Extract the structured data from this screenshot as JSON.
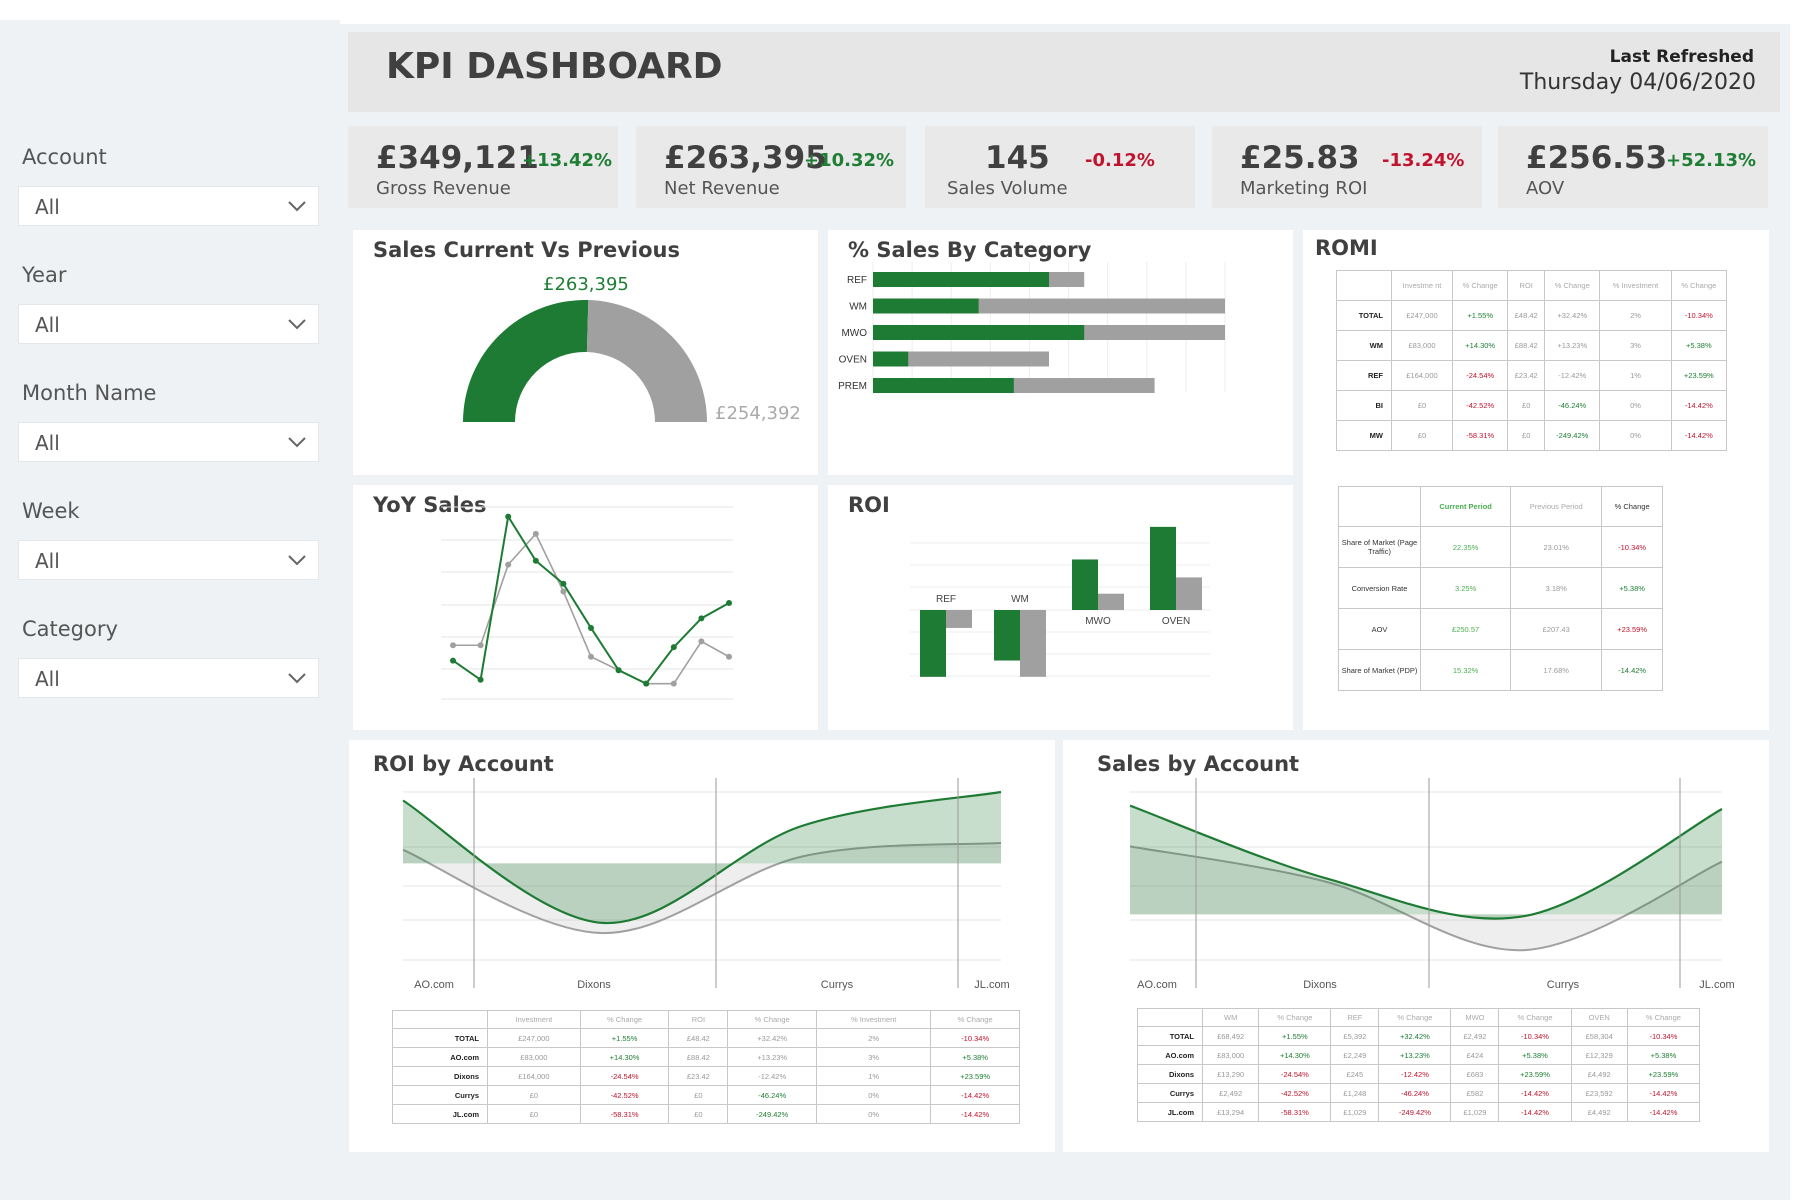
{
  "header": {
    "title": "KPI DASHBOARD",
    "refresh_label": "Last Refreshed",
    "refresh_date": "Thursday 04/06/2020"
  },
  "filters": [
    {
      "label": "Account",
      "value": "All"
    },
    {
      "label": "Year",
      "value": "All"
    },
    {
      "label": "Month Name",
      "value": "All"
    },
    {
      "label": "Week",
      "value": "All"
    },
    {
      "label": "Category",
      "value": "All"
    }
  ],
  "kpis": [
    {
      "value": "£349,121",
      "change": "+13.42%",
      "label": "Gross Revenue",
      "trend": "positive"
    },
    {
      "value": "£263,395",
      "change": "+10.32%",
      "label": "Net Revenue",
      "trend": "positive"
    },
    {
      "value": "145",
      "change": "-0.12%",
      "label": "Sales Volume",
      "trend": "negative"
    },
    {
      "value": "£25.83",
      "change": "-13.24%",
      "label": "Marketing ROI",
      "trend": "negative"
    },
    {
      "value": "£256.53",
      "change": "+52.13%",
      "label": "AOV",
      "trend": "positive"
    }
  ],
  "colors": {
    "green": "#1e7b34",
    "grey": "#a0a0a0",
    "positive": "#1e7e34",
    "negative": "#c0142e"
  },
  "sales_cv": {
    "title": "Sales Current Vs Previous",
    "current_label": "£263,395",
    "previous_label": "£254,392"
  },
  "pct_sales_by_category": {
    "title": "% Sales By Category"
  },
  "yoy_sales": {
    "title": "YoY Sales"
  },
  "roi": {
    "title": "ROI"
  },
  "romi": {
    "title": "ROMI",
    "table1": {
      "headers": [
        "",
        "Investme nt",
        "% Change",
        "ROI",
        "% Change",
        "% Investment",
        "% Change"
      ],
      "rows": [
        [
          "TOTAL",
          "£247,000",
          "+1.55%",
          "£48.42",
          "+32.42%",
          "2%",
          "-10.34%"
        ],
        [
          "WM",
          "£83,000",
          "+14.30%",
          "£88.42",
          "+13.23%",
          "3%",
          "+5.38%"
        ],
        [
          "REF",
          "£164,000",
          "-24.54%",
          "£23.42",
          "-12.42%",
          "1%",
          "+23.59%"
        ],
        [
          "BI",
          "£0",
          "-42.52%",
          "£0",
          "-46.24%",
          "0%",
          "-14.42%"
        ],
        [
          "MW",
          "£0",
          "-58.31%",
          "£0",
          "-249.42%",
          "0%",
          "-14.42%"
        ]
      ]
    },
    "table2": {
      "headers": [
        "",
        "Current Period",
        "Previous Period",
        "% Change"
      ],
      "rows": [
        [
          "Share of Market (Page Traffic)",
          "22.35%",
          "23.01%",
          "-10.34%"
        ],
        [
          "Conversion Rate",
          "3.25%",
          "3.18%",
          "+5.38%"
        ],
        [
          "AOV",
          "£250.57",
          "£207.43",
          "+23.59%"
        ],
        [
          "Share of Market (PDP)",
          "15.32%",
          "17.68%",
          "-14.42%"
        ]
      ]
    }
  },
  "roi_by_account": {
    "title": "ROI by Account",
    "axis": [
      "AO.com",
      "Dixons",
      "Currys",
      "JL.com"
    ],
    "table": {
      "headers": [
        "",
        "Investment",
        "% Change",
        "ROI",
        "% Change",
        "% Investment",
        "% Change"
      ],
      "rows": [
        [
          "TOTAL",
          "£247,000",
          "+1.55%",
          "£48.42",
          "+32.42%",
          "2%",
          "-10.34%"
        ],
        [
          "AO.com",
          "£83,000",
          "+14.30%",
          "£88.42",
          "+13.23%",
          "3%",
          "+5.38%"
        ],
        [
          "Dixons",
          "£164,000",
          "-24.54%",
          "£23.42",
          "-12.42%",
          "1%",
          "+23.59%"
        ],
        [
          "Currys",
          "£0",
          "-42.52%",
          "£0",
          "-46.24%",
          "0%",
          "-14.42%"
        ],
        [
          "JL.com",
          "£0",
          "-58.31%",
          "£0",
          "-249.42%",
          "0%",
          "-14.42%"
        ]
      ]
    }
  },
  "sales_by_account": {
    "title": "Sales by Account",
    "axis": [
      "AO.com",
      "Dixons",
      "Currys",
      "JL.com"
    ],
    "table": {
      "headers": [
        "",
        "WM",
        "% Change",
        "REF",
        "% Change",
        "MWO",
        "% Change",
        "OVEN",
        "% Change"
      ],
      "rows": [
        [
          "TOTAL",
          "£68,492",
          "+1.55%",
          "£5,392",
          "+32.42%",
          "£2,492",
          "-10.34%",
          "£58,304",
          "-10.34%"
        ],
        [
          "AO.com",
          "£83,000",
          "+14.30%",
          "£2,249",
          "+13.23%",
          "£424",
          "+5.38%",
          "£12,329",
          "+5.38%"
        ],
        [
          "Dixons",
          "£13,290",
          "-24.54%",
          "£245",
          "-12.42%",
          "£683",
          "+23.59%",
          "£4,492",
          "+23.59%"
        ],
        [
          "Currys",
          "£2,492",
          "-42.52%",
          "£1,248",
          "-46.24%",
          "£582",
          "-14.42%",
          "£23,592",
          "-14.42%"
        ],
        [
          "JL.com",
          "£13,294",
          "-58.31%",
          "£1,029",
          "-249.42%",
          "£1,029",
          "-14.42%",
          "£4,492",
          "-14.42%"
        ]
      ]
    }
  },
  "chart_data": [
    {
      "type": "pie",
      "title": "Sales Current Vs Previous",
      "slices": [
        {
          "label": "Current",
          "value": 263395,
          "color": "#1e7b34"
        },
        {
          "label": "Previous",
          "value": 254392,
          "color": "#a0a0a0"
        }
      ]
    },
    {
      "type": "bar",
      "title": "% Sales By Category",
      "orientation": "horizontal",
      "categories": [
        "REF",
        "WM",
        "MWO",
        "OVEN",
        "PREM"
      ],
      "series": [
        {
          "values": [
            50,
            30,
            60,
            10,
            40
          ],
          "color": "#1e7b34"
        },
        {
          "values": [
            60,
            100,
            100,
            50,
            80
          ],
          "color": "#a0a0a0"
        }
      ],
      "xlim": [
        0,
        100
      ],
      "grid": true
    },
    {
      "type": "line",
      "title": "YoY Sales",
      "x": [
        1,
        2,
        3,
        4,
        5,
        6,
        7,
        8,
        9,
        10,
        11
      ],
      "series": [
        {
          "values": [
            20,
            10,
            95,
            72,
            60,
            37,
            15,
            8,
            27,
            42,
            50
          ],
          "color": "#1e7b34"
        },
        {
          "values": [
            28,
            28,
            70,
            86,
            56,
            22,
            15,
            8,
            8,
            30,
            22
          ],
          "color": "#a0a0a0"
        }
      ],
      "ylim": [
        0,
        100
      ],
      "grid": true
    },
    {
      "type": "bar",
      "title": "ROI",
      "categories": [
        "REF",
        "WM",
        "MWO",
        "OVEN"
      ],
      "series": [
        {
          "values": [
            -41,
            -31,
            31,
            51
          ],
          "color": "#1e7b34"
        },
        {
          "values": [
            -11,
            -41,
            10,
            20
          ],
          "color": "#a0a0a0"
        }
      ],
      "ylim": [
        -45,
        55
      ],
      "grid": true
    },
    {
      "type": "area",
      "title": "ROI by Account",
      "categories": [
        "AO.com",
        "Dixons",
        "Currys",
        "JL.com"
      ],
      "ylim": [
        0,
        100
      ],
      "grid": true,
      "series": [
        {
          "values": [
            95,
            23,
            80,
            100
          ],
          "color": "#1e7b34"
        },
        {
          "values": [
            66,
            17,
            62,
            70
          ],
          "color": "#a0a0a0"
        }
      ]
    },
    {
      "type": "area",
      "title": "Sales by Account",
      "categories": [
        "AO.com",
        "Dixons",
        "Currys",
        "JL.com"
      ],
      "ylim": [
        0,
        100
      ],
      "grid": true,
      "series": [
        {
          "values": [
            92,
            49,
            27,
            90
          ],
          "color": "#1e7b34"
        },
        {
          "values": [
            68,
            47,
            7,
            59
          ],
          "color": "#a0a0a0"
        }
      ]
    }
  ]
}
